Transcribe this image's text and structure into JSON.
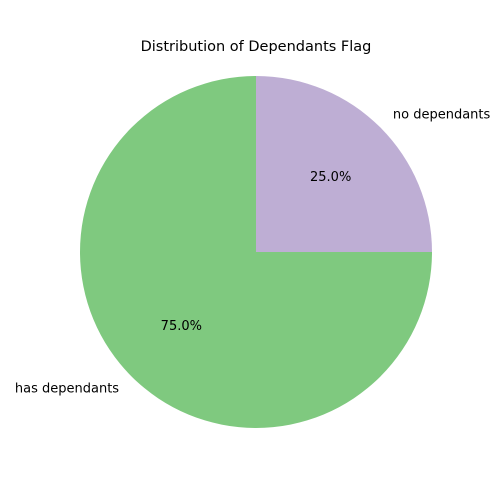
{
  "chart_data": {
    "type": "pie",
    "title": "Distribution of Dependants Flag",
    "categories": [
      "has dependants",
      "no dependants"
    ],
    "values": [
      75.0,
      25.0
    ],
    "percent_labels": [
      "75.0%",
      "25.0%"
    ],
    "colors": [
      "#7fc97f",
      "#beaed4"
    ],
    "start_angle_deg": 90,
    "direction": "counterclockwise",
    "legend": "none"
  }
}
